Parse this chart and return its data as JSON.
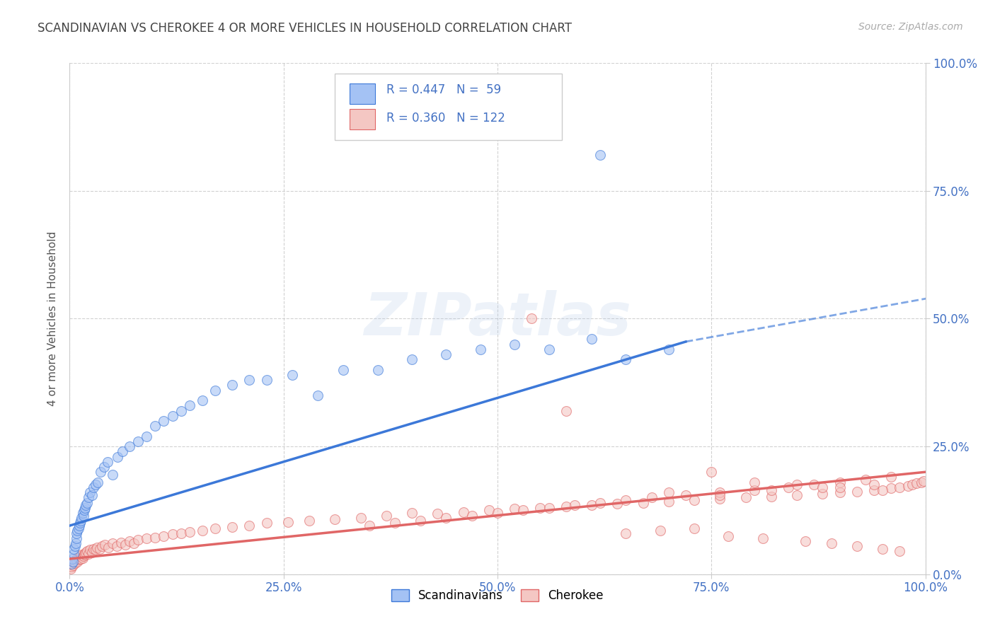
{
  "title": "SCANDINAVIAN VS CHEROKEE 4 OR MORE VEHICLES IN HOUSEHOLD CORRELATION CHART",
  "source": "Source: ZipAtlas.com",
  "ylabel": "4 or more Vehicles in Household",
  "watermark": "ZIPatlas",
  "legend_label1": "Scandinavians",
  "legend_label2": "Cherokee",
  "R1": 0.447,
  "N1": 59,
  "R2": 0.36,
  "N2": 122,
  "color_blue": "#a4c2f4",
  "color_pink": "#f4c7c3",
  "color_blue_line": "#3c78d8",
  "color_pink_line": "#e06666",
  "color_title": "#434343",
  "color_source": "#aaaaaa",
  "color_axis_ticks": "#4472c4",
  "background_color": "#ffffff",
  "grid_color": "#cccccc",
  "blue_x": [
    0.002,
    0.003,
    0.004,
    0.005,
    0.005,
    0.006,
    0.007,
    0.008,
    0.008,
    0.009,
    0.01,
    0.011,
    0.012,
    0.013,
    0.014,
    0.015,
    0.016,
    0.017,
    0.018,
    0.019,
    0.02,
    0.022,
    0.024,
    0.026,
    0.028,
    0.03,
    0.033,
    0.036,
    0.04,
    0.044,
    0.05,
    0.056,
    0.062,
    0.07,
    0.08,
    0.09,
    0.1,
    0.11,
    0.12,
    0.13,
    0.14,
    0.155,
    0.17,
    0.19,
    0.21,
    0.23,
    0.26,
    0.29,
    0.32,
    0.36,
    0.4,
    0.44,
    0.48,
    0.52,
    0.56,
    0.61,
    0.65,
    0.7,
    0.62
  ],
  "blue_y": [
    0.02,
    0.03,
    0.025,
    0.04,
    0.05,
    0.055,
    0.06,
    0.07,
    0.08,
    0.085,
    0.09,
    0.095,
    0.1,
    0.105,
    0.11,
    0.12,
    0.115,
    0.125,
    0.13,
    0.135,
    0.14,
    0.15,
    0.16,
    0.155,
    0.17,
    0.175,
    0.18,
    0.2,
    0.21,
    0.22,
    0.195,
    0.23,
    0.24,
    0.25,
    0.26,
    0.27,
    0.29,
    0.3,
    0.31,
    0.32,
    0.33,
    0.34,
    0.36,
    0.37,
    0.38,
    0.38,
    0.39,
    0.35,
    0.4,
    0.4,
    0.42,
    0.43,
    0.44,
    0.45,
    0.44,
    0.46,
    0.42,
    0.44,
    0.82
  ],
  "pink_x": [
    0.001,
    0.002,
    0.003,
    0.004,
    0.005,
    0.006,
    0.007,
    0.008,
    0.009,
    0.01,
    0.011,
    0.012,
    0.013,
    0.014,
    0.015,
    0.016,
    0.017,
    0.018,
    0.019,
    0.02,
    0.022,
    0.024,
    0.026,
    0.028,
    0.03,
    0.032,
    0.035,
    0.038,
    0.041,
    0.045,
    0.05,
    0.055,
    0.06,
    0.065,
    0.07,
    0.075,
    0.08,
    0.09,
    0.1,
    0.11,
    0.12,
    0.13,
    0.14,
    0.155,
    0.17,
    0.19,
    0.21,
    0.23,
    0.255,
    0.28,
    0.31,
    0.34,
    0.37,
    0.4,
    0.43,
    0.46,
    0.49,
    0.52,
    0.55,
    0.58,
    0.61,
    0.64,
    0.67,
    0.7,
    0.73,
    0.76,
    0.79,
    0.82,
    0.85,
    0.88,
    0.9,
    0.92,
    0.94,
    0.96,
    0.97,
    0.98,
    0.985,
    0.99,
    0.995,
    0.998,
    0.35,
    0.38,
    0.41,
    0.44,
    0.47,
    0.5,
    0.53,
    0.56,
    0.59,
    0.62,
    0.65,
    0.68,
    0.72,
    0.76,
    0.8,
    0.84,
    0.87,
    0.9,
    0.93,
    0.96,
    0.75,
    0.8,
    0.85,
    0.9,
    0.95,
    0.7,
    0.76,
    0.82,
    0.88,
    0.94,
    0.65,
    0.69,
    0.73,
    0.77,
    0.81,
    0.86,
    0.89,
    0.92,
    0.95,
    0.97,
    0.54,
    0.58
  ],
  "pink_y": [
    0.01,
    0.015,
    0.02,
    0.018,
    0.025,
    0.022,
    0.028,
    0.03,
    0.025,
    0.032,
    0.028,
    0.035,
    0.03,
    0.038,
    0.032,
    0.035,
    0.04,
    0.038,
    0.042,
    0.045,
    0.04,
    0.048,
    0.042,
    0.05,
    0.048,
    0.052,
    0.05,
    0.055,
    0.058,
    0.052,
    0.06,
    0.055,
    0.062,
    0.058,
    0.065,
    0.06,
    0.068,
    0.07,
    0.072,
    0.075,
    0.078,
    0.08,
    0.082,
    0.085,
    0.09,
    0.092,
    0.095,
    0.1,
    0.102,
    0.105,
    0.108,
    0.11,
    0.115,
    0.12,
    0.118,
    0.122,
    0.125,
    0.128,
    0.13,
    0.132,
    0.135,
    0.138,
    0.14,
    0.142,
    0.145,
    0.148,
    0.15,
    0.152,
    0.155,
    0.158,
    0.16,
    0.162,
    0.165,
    0.168,
    0.17,
    0.172,
    0.175,
    0.178,
    0.18,
    0.182,
    0.095,
    0.1,
    0.105,
    0.11,
    0.115,
    0.12,
    0.125,
    0.13,
    0.135,
    0.14,
    0.145,
    0.15,
    0.155,
    0.16,
    0.165,
    0.17,
    0.175,
    0.18,
    0.185,
    0.19,
    0.2,
    0.18,
    0.175,
    0.17,
    0.165,
    0.16,
    0.155,
    0.165,
    0.17,
    0.175,
    0.08,
    0.085,
    0.09,
    0.075,
    0.07,
    0.065,
    0.06,
    0.055,
    0.05,
    0.045,
    0.5,
    0.32
  ]
}
